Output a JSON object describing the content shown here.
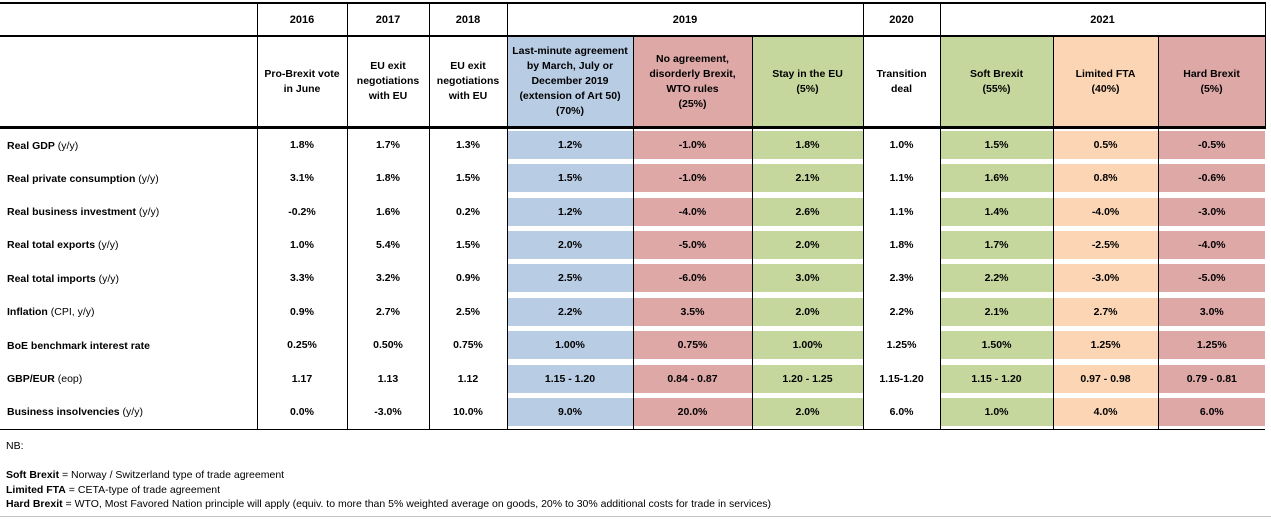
{
  "colors": {
    "blue": "#B8CCE4",
    "red": "#DEA8A7",
    "green": "#C5D79D",
    "orange": "#FCD5B4"
  },
  "table": {
    "year_cells": [
      {
        "label": "2016",
        "span": 1
      },
      {
        "label": "2017",
        "span": 1
      },
      {
        "label": "2018",
        "span": 1
      },
      {
        "label": "2019",
        "span": 3
      },
      {
        "label": "2020",
        "span": 1
      },
      {
        "label": "2021",
        "span": 3
      }
    ],
    "scenario_cells": [
      {
        "text": "Pro-Brexit vote in June",
        "color": "white"
      },
      {
        "text": "EU exit negotiations with EU",
        "color": "white"
      },
      {
        "text": "EU exit negotiations with EU",
        "color": "white"
      },
      {
        "text": "Last-minute agreement by March, July or December 2019 (extension of Art 50)\n(70%)",
        "color": "blue"
      },
      {
        "text": "No agreement, disorderly Brexit, WTO rules\n(25%)",
        "color": "red"
      },
      {
        "text": "Stay in the EU\n(5%)",
        "color": "green"
      },
      {
        "text": "Transition deal",
        "color": "white"
      },
      {
        "text": "Soft Brexit\n(55%)",
        "color": "green"
      },
      {
        "text": "Limited FTA\n(40%)",
        "color": "orange"
      },
      {
        "text": "Hard Brexit\n(5%)",
        "color": "red"
      }
    ],
    "column_colors": [
      "white",
      "white",
      "white",
      "blue",
      "red",
      "green",
      "white",
      "green",
      "orange",
      "red"
    ],
    "rows": [
      {
        "label": "Real GDP",
        "label_note": "(y/y)",
        "values": [
          "1.8%",
          "1.7%",
          "1.3%",
          "1.2%",
          "-1.0%",
          "1.8%",
          "1.0%",
          "1.5%",
          "0.5%",
          "-0.5%"
        ]
      },
      {
        "label": "Real private consumption",
        "label_note": "(y/y)",
        "values": [
          "3.1%",
          "1.8%",
          "1.5%",
          "1.5%",
          "-1.0%",
          "2.1%",
          "1.1%",
          "1.6%",
          "0.8%",
          "-0.6%"
        ]
      },
      {
        "label": "Real business investment",
        "label_note": "(y/y)",
        "values": [
          "-0.2%",
          "1.6%",
          "0.2%",
          "1.2%",
          "-4.0%",
          "2.6%",
          "1.1%",
          "1.4%",
          "-4.0%",
          "-3.0%"
        ]
      },
      {
        "label": "Real total exports",
        "label_note": "(y/y)",
        "values": [
          "1.0%",
          "5.4%",
          "1.5%",
          "2.0%",
          "-5.0%",
          "2.0%",
          "1.8%",
          "1.7%",
          "-2.5%",
          "-4.0%"
        ]
      },
      {
        "label": "Real total imports",
        "label_note": "(y/y)",
        "values": [
          "3.3%",
          "3.2%",
          "0.9%",
          "2.5%",
          "-6.0%",
          "3.0%",
          "2.3%",
          "2.2%",
          "-3.0%",
          "-5.0%"
        ]
      },
      {
        "label": "Inflation",
        "label_note": "(CPI, y/y)",
        "values": [
          "0.9%",
          "2.7%",
          "2.5%",
          "2.2%",
          "3.5%",
          "2.0%",
          "2.2%",
          "2.1%",
          "2.7%",
          "3.0%"
        ]
      },
      {
        "label": "BoE benchmark interest rate",
        "label_note": "",
        "values": [
          "0.25%",
          "0.50%",
          "0.75%",
          "1.00%",
          "0.75%",
          "1.00%",
          "1.25%",
          "1.50%",
          "1.25%",
          "1.25%"
        ]
      },
      {
        "label": "GBP/EUR",
        "label_note": "(eop)",
        "values": [
          "1.17",
          "1.13",
          "1.12",
          "1.15 - 1.20",
          "0.84 - 0.87",
          "1.20 - 1.25",
          "1.15-1.20",
          "1.15 - 1.20",
          "0.97 - 0.98",
          "0.79 - 0.81"
        ]
      },
      {
        "label": "Business insolvencies",
        "label_note": "(y/y)",
        "values": [
          "0.0%",
          "-3.0%",
          "10.0%",
          "9.0%",
          "20.0%",
          "2.0%",
          "6.0%",
          "1.0%",
          "4.0%",
          "6.0%"
        ]
      }
    ]
  },
  "notes": {
    "nb": "NB:",
    "items": [
      {
        "term": "Soft Brexit",
        "definition": " = Norway / Switzerland type of trade agreement"
      },
      {
        "term": "Limited FTA",
        "definition": " = CETA-type of trade agreement"
      },
      {
        "term": "Hard Brexit",
        "definition": " = WTO, Most Favored Nation principle will apply (equiv. to more than 5% weighted average on goods, 20% to 30% additional costs for trade in services)"
      }
    ]
  }
}
